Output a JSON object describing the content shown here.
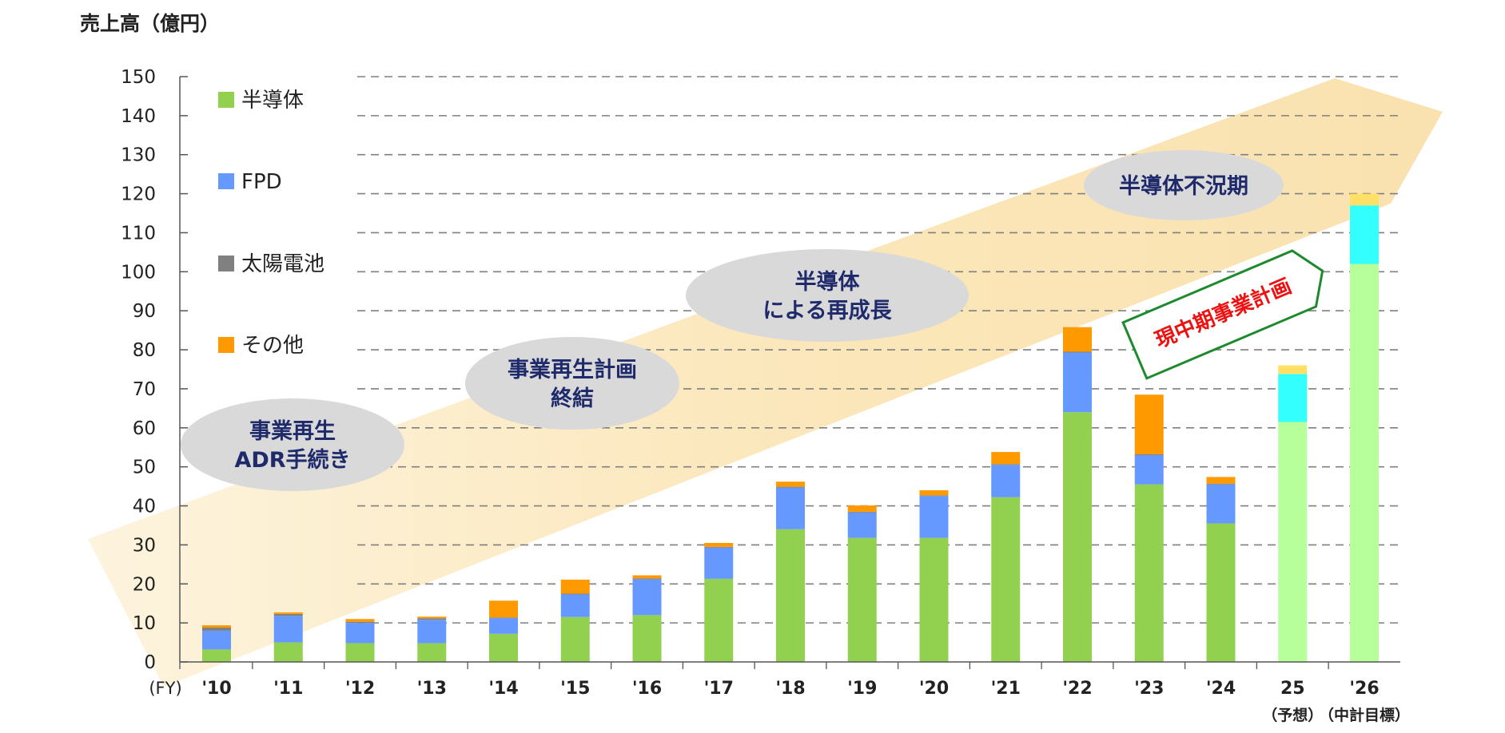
{
  "chart_data": {
    "type": "bar",
    "stacked": true,
    "ylabel": "売上高（億円）",
    "xlabel": "(FY)",
    "ylim": [
      0,
      150
    ],
    "yticks": [
      0,
      10,
      20,
      30,
      40,
      50,
      60,
      70,
      80,
      90,
      100,
      110,
      120,
      130,
      140,
      150
    ],
    "grid": true,
    "legend_position": "top-left",
    "categories": [
      "'10",
      "'11",
      "'12",
      "'13",
      "'14",
      "'15",
      "'16",
      "'17",
      "'18",
      "'19",
      "'20",
      "'21",
      "'22",
      "'23",
      "'24",
      "25",
      "'26"
    ],
    "category_sublabels": [
      "",
      "",
      "",
      "",
      "",
      "",
      "",
      "",
      "",
      "",
      "",
      "",
      "",
      "",
      "",
      "（予想）",
      "（中計目標）"
    ],
    "series": [
      {
        "name": "半導体",
        "color": "#92d050",
        "values": [
          3.2,
          5.0,
          4.8,
          4.8,
          7.2,
          11.5,
          12.0,
          21.3,
          34.0,
          31.8,
          31.8,
          42.2,
          64.0,
          45.5,
          35.5,
          61.5,
          102.0
        ]
      },
      {
        "name": "FPD",
        "color": "#6699ff",
        "values": [
          4.8,
          6.8,
          5.2,
          6.0,
          4.0,
          5.8,
          9.2,
          8.0,
          10.7,
          6.5,
          10.7,
          8.3,
          15.3,
          7.5,
          10.0,
          12.3,
          15.0
        ]
      },
      {
        "name": "太陽電池",
        "color": "#808080",
        "values": [
          0.8,
          0.5,
          0.3,
          0.4,
          0.2,
          0.2,
          0.2,
          0.2,
          0.2,
          0.2,
          0.2,
          0.2,
          0.2,
          0.2,
          0.2,
          0,
          0
        ]
      },
      {
        "name": "その他",
        "color": "#ff9900",
        "values": [
          0.6,
          0.4,
          0.7,
          0.4,
          4.3,
          3.6,
          0.8,
          1.0,
          1.3,
          1.6,
          1.3,
          3.1,
          6.3,
          15.3,
          1.7,
          2.2,
          3.0
        ]
      }
    ],
    "forecast_indices": [
      15,
      16
    ],
    "forecast_colors": [
      "#b6ff9a",
      "#33ffff",
      "#808080",
      "#ffe066"
    ],
    "annotations": [
      {
        "id": "bubble-1",
        "lines": [
          "事業再生",
          "ADR手続き"
        ]
      },
      {
        "id": "bubble-2",
        "lines": [
          "事業再生計画",
          "終結"
        ]
      },
      {
        "id": "bubble-3",
        "lines": [
          "半導体",
          "による再成長"
        ]
      },
      {
        "id": "bubble-4",
        "lines": [
          "半導体不況期"
        ]
      }
    ],
    "callout": "現中期事業計画"
  },
  "colors": {
    "text": "#222222",
    "bubble_fill": "#d9d9d9",
    "bubble_text": "#1f2a6b",
    "band": "#fbe9c0",
    "callout_border": "#1e8a2e",
    "callout_text": "#ee1111"
  }
}
